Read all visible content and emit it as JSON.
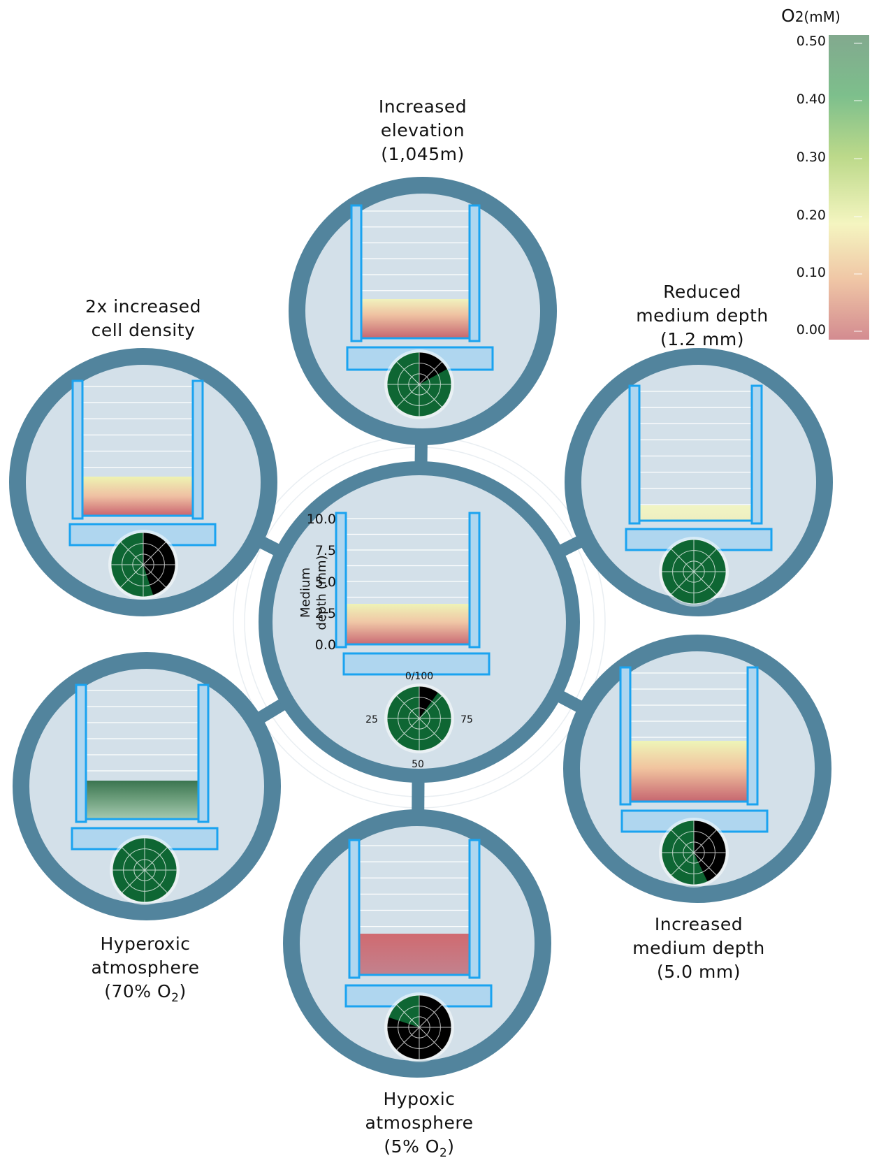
{
  "colorbar": {
    "title_main": "O",
    "title_rest": "2(mM)",
    "ticks": [
      "0.50",
      "0.40",
      "0.30",
      "0.20",
      "0.10",
      "0.00"
    ],
    "colors": [
      "#82a98e",
      "#7dbf8c",
      "#bcd98a",
      "#f2f2b8",
      "#f0c7a6",
      "#d38b90"
    ]
  },
  "center": {
    "y_axis_title_line1": "Medium",
    "y_axis_title_line2": "depth (mm)",
    "y_ticks": [
      "10.0",
      "7.5",
      "5.0",
      "2.5",
      "0.0"
    ],
    "polar_ticks": {
      "top": "0/100",
      "left": "25",
      "right": "75",
      "bottom": "50"
    }
  },
  "panels": {
    "elevation": {
      "line1": "Increased",
      "line2": "elevation",
      "line3": "(1,045m)"
    },
    "density": {
      "line1": "2x increased",
      "line2": "cell density"
    },
    "reduced": {
      "line1": "Reduced",
      "line2": "medium depth",
      "line3": "(1.2 mm)"
    },
    "increased": {
      "line1": "Increased",
      "line2": "medium depth",
      "line3": "(5.0 mm)"
    },
    "hyperoxic": {
      "line1": "Hyperoxic",
      "line2": "atmosphere",
      "line3_main": "(70% O",
      "line3_sub": "2",
      "line3_end": ")"
    },
    "hypoxic": {
      "line1": "Hypoxic",
      "line2": "atmosphere",
      "line3_main": "(5% O",
      "line3_sub": "2",
      "line3_end": ")"
    }
  },
  "pie_black_fraction": {
    "center": 0.1,
    "elevation": 0.17,
    "density": 0.45,
    "reduced": 0.0,
    "increased": 0.43,
    "hyperoxic": 0.0,
    "hypoxic": 0.8
  },
  "palette": {
    "ring": "#52849d",
    "disk": "#d3e0e9",
    "insert": "#1aa3f0",
    "insert_fill": "#afd6ef",
    "pie_green": "#0e6633",
    "pie_black": "#000000",
    "medium_red": "#c96a74",
    "medium_yellow": "#eef3b6",
    "hyperoxic_green": "#3f7a55"
  }
}
